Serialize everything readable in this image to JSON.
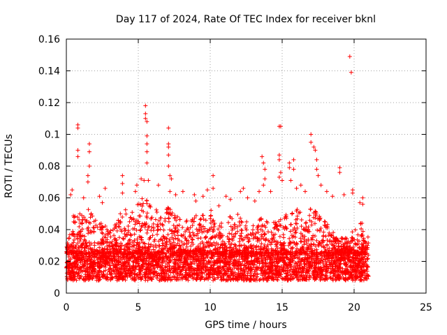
{
  "chart_data": {
    "type": "scatter",
    "title": "Day 117 of 2024, Rate Of TEC Index for receiver bknl",
    "xlabel": "GPS time / hours",
    "ylabel": "ROTI / TECUs",
    "xlim": [
      0,
      25
    ],
    "ylim": [
      0,
      0.16
    ],
    "x_ticks": [
      "0",
      "5",
      "10",
      "15",
      "20",
      "25"
    ],
    "y_ticks": [
      "0",
      "0.02",
      "0.04",
      "0.06",
      "0.08",
      "0.1",
      "0.12",
      "0.14",
      "0.16"
    ],
    "grid": true,
    "marker": "plus",
    "color": "#ff0000",
    "series": [
      {
        "x_range": [
          0,
          21
        ],
        "dense_band": [
          0.008,
          0.025
        ],
        "envelope": [
          [
            0.0,
            0.028
          ],
          [
            0.5,
            0.05
          ],
          [
            1.0,
            0.05
          ],
          [
            1.5,
            0.055
          ],
          [
            2.0,
            0.05
          ],
          [
            2.5,
            0.045
          ],
          [
            3.0,
            0.04
          ],
          [
            3.5,
            0.045
          ],
          [
            4.0,
            0.055
          ],
          [
            4.5,
            0.05
          ],
          [
            5.0,
            0.06
          ],
          [
            5.5,
            0.06
          ],
          [
            6.0,
            0.055
          ],
          [
            6.5,
            0.05
          ],
          [
            7.0,
            0.055
          ],
          [
            7.5,
            0.05
          ],
          [
            8.0,
            0.05
          ],
          [
            8.5,
            0.045
          ],
          [
            9.0,
            0.05
          ],
          [
            9.5,
            0.05
          ],
          [
            10.0,
            0.055
          ],
          [
            10.5,
            0.045
          ],
          [
            11.0,
            0.045
          ],
          [
            11.5,
            0.05
          ],
          [
            12.0,
            0.05
          ],
          [
            12.5,
            0.045
          ],
          [
            13.0,
            0.045
          ],
          [
            13.5,
            0.05
          ],
          [
            14.0,
            0.045
          ],
          [
            14.5,
            0.045
          ],
          [
            15.0,
            0.05
          ],
          [
            15.5,
            0.05
          ],
          [
            16.0,
            0.055
          ],
          [
            16.5,
            0.05
          ],
          [
            17.0,
            0.055
          ],
          [
            17.5,
            0.05
          ],
          [
            18.0,
            0.045
          ],
          [
            18.5,
            0.04
          ],
          [
            19.0,
            0.035
          ],
          [
            19.5,
            0.035
          ],
          [
            20.0,
            0.04
          ],
          [
            20.5,
            0.045
          ],
          [
            21.0,
            0.035
          ]
        ],
        "outliers": [
          [
            0.3,
            0.062
          ],
          [
            0.4,
            0.065
          ],
          [
            0.8,
            0.104
          ],
          [
            0.8,
            0.106
          ],
          [
            0.8,
            0.09
          ],
          [
            0.8,
            0.086
          ],
          [
            1.6,
            0.094
          ],
          [
            1.6,
            0.089
          ],
          [
            1.6,
            0.08
          ],
          [
            1.5,
            0.074
          ],
          [
            1.5,
            0.07
          ],
          [
            1.2,
            0.06
          ],
          [
            2.3,
            0.061
          ],
          [
            2.5,
            0.057
          ],
          [
            2.7,
            0.066
          ],
          [
            3.9,
            0.074
          ],
          [
            3.9,
            0.069
          ],
          [
            3.9,
            0.063
          ],
          [
            4.8,
            0.064
          ],
          [
            4.9,
            0.068
          ],
          [
            5.2,
            0.072
          ],
          [
            5.4,
            0.071
          ],
          [
            5.5,
            0.118
          ],
          [
            5.5,
            0.113
          ],
          [
            5.5,
            0.11
          ],
          [
            5.6,
            0.108
          ],
          [
            5.6,
            0.099
          ],
          [
            5.6,
            0.094
          ],
          [
            5.6,
            0.089
          ],
          [
            5.6,
            0.082
          ],
          [
            5.7,
            0.071
          ],
          [
            6.4,
            0.068
          ],
          [
            7.1,
            0.104
          ],
          [
            7.1,
            0.094
          ],
          [
            7.1,
            0.092
          ],
          [
            7.1,
            0.087
          ],
          [
            7.1,
            0.08
          ],
          [
            7.2,
            0.074
          ],
          [
            7.3,
            0.072
          ],
          [
            7.2,
            0.064
          ],
          [
            7.6,
            0.062
          ],
          [
            8.1,
            0.064
          ],
          [
            8.9,
            0.062
          ],
          [
            9.0,
            0.058
          ],
          [
            9.5,
            0.061
          ],
          [
            9.8,
            0.065
          ],
          [
            10.2,
            0.074
          ],
          [
            10.2,
            0.066
          ],
          [
            10.6,
            0.055
          ],
          [
            11.1,
            0.061
          ],
          [
            11.4,
            0.059
          ],
          [
            12.1,
            0.064
          ],
          [
            12.3,
            0.066
          ],
          [
            12.6,
            0.06
          ],
          [
            13.1,
            0.058
          ],
          [
            13.4,
            0.064
          ],
          [
            13.6,
            0.086
          ],
          [
            13.7,
            0.082
          ],
          [
            13.8,
            0.078
          ],
          [
            13.8,
            0.072
          ],
          [
            13.7,
            0.068
          ],
          [
            14.2,
            0.064
          ],
          [
            14.8,
            0.105
          ],
          [
            14.9,
            0.105
          ],
          [
            14.8,
            0.087
          ],
          [
            14.8,
            0.084
          ],
          [
            14.9,
            0.076
          ],
          [
            14.8,
            0.073
          ],
          [
            15.0,
            0.071
          ],
          [
            15.5,
            0.082
          ],
          [
            15.5,
            0.079
          ],
          [
            15.6,
            0.071
          ],
          [
            15.8,
            0.084
          ],
          [
            15.8,
            0.078
          ],
          [
            16.0,
            0.066
          ],
          [
            16.3,
            0.068
          ],
          [
            16.6,
            0.064
          ],
          [
            17.0,
            0.1
          ],
          [
            17.0,
            0.095
          ],
          [
            17.2,
            0.092
          ],
          [
            17.3,
            0.09
          ],
          [
            17.4,
            0.084
          ],
          [
            17.4,
            0.078
          ],
          [
            17.5,
            0.074
          ],
          [
            17.7,
            0.068
          ],
          [
            18.1,
            0.064
          ],
          [
            18.5,
            0.061
          ],
          [
            19.0,
            0.079
          ],
          [
            19.0,
            0.076
          ],
          [
            19.3,
            0.062
          ],
          [
            19.7,
            0.149
          ],
          [
            19.8,
            0.139
          ],
          [
            19.9,
            0.065
          ],
          [
            19.9,
            0.063
          ],
          [
            20.4,
            0.057
          ],
          [
            20.6,
            0.06
          ],
          [
            20.6,
            0.056
          ]
        ]
      }
    ]
  }
}
